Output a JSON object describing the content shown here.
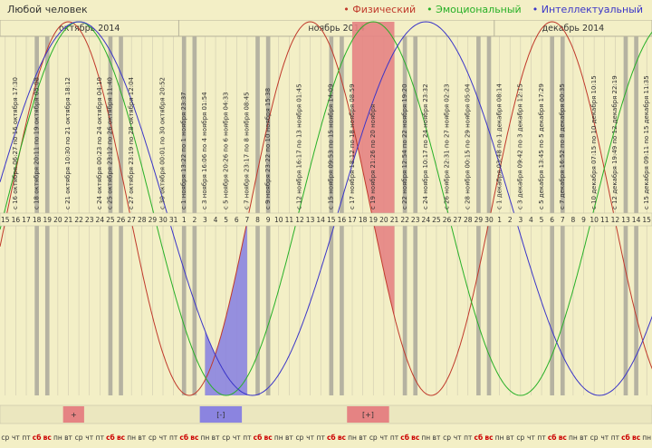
{
  "subject": "Любой человек",
  "legend": {
    "physical": "Физический",
    "emotional": "Эмоциональный",
    "intellectual": "Интеллектуальный"
  },
  "colors": {
    "physical": "#c0392b",
    "emotional": "#27b027",
    "intellectual": "#3a35c8",
    "background": "#f3efc6",
    "weekend": "#a9a79a"
  },
  "chart_data": {
    "type": "line",
    "months": [
      {
        "label": "октябрь 2014",
        "first_day": "2014-10-15",
        "last_day": "2014-10-31"
      },
      {
        "label": "ноябрь 2014",
        "first_day": "2014-11-01",
        "last_day": "2014-11-30"
      },
      {
        "label": "декабрь 2014",
        "first_day": "2014-12-01",
        "last_day": "2014-12-15"
      }
    ],
    "x_range": [
      "2014-10-15",
      "2014-12-15"
    ],
    "day_numbers": [
      15,
      16,
      17,
      18,
      19,
      20,
      21,
      22,
      23,
      24,
      25,
      26,
      27,
      28,
      29,
      30,
      31,
      1,
      2,
      3,
      4,
      5,
      6,
      7,
      8,
      9,
      10,
      11,
      12,
      13,
      14,
      15,
      16,
      17,
      18,
      19,
      20,
      21,
      22,
      23,
      24,
      25,
      26,
      27,
      28,
      29,
      30,
      1,
      2,
      3,
      4,
      5,
      6,
      7,
      8,
      9,
      10,
      11,
      12,
      13,
      14,
      15
    ],
    "weekdays": [
      "ср",
      "чт",
      "пт",
      "сб",
      "вс",
      "пн",
      "вт",
      "ср",
      "чт",
      "пт",
      "сб",
      "вс",
      "пн",
      "вт",
      "ср",
      "чт",
      "пт",
      "сб",
      "вс",
      "пн",
      "вт",
      "ср",
      "чт",
      "пт",
      "сб",
      "вс",
      "пн",
      "вт",
      "ср",
      "чт",
      "пт",
      "сб",
      "вс",
      "пн",
      "вт",
      "ср",
      "чт",
      "пт",
      "сб",
      "вс",
      "пн",
      "вт",
      "ср",
      "чт",
      "пт",
      "сб",
      "вс",
      "пн",
      "вт",
      "ср",
      "чт",
      "пт",
      "сб",
      "вс",
      "пн",
      "вт",
      "ср",
      "чт",
      "пт",
      "сб",
      "вс",
      "пн"
    ],
    "weekend_labels": [
      "сб",
      "вс"
    ],
    "series": [
      {
        "name": "Физический",
        "key": "physical",
        "period_days": 23,
        "peaks": [
          "2014-10-21",
          "2014-11-13",
          "2014-12-06"
        ]
      },
      {
        "name": "Эмоциональный",
        "key": "emotional",
        "period_days": 28,
        "peaks": [
          "2014-10-22",
          "2014-11-19",
          "2014-12-17"
        ]
      },
      {
        "name": "Интеллектуальный",
        "key": "intellectual",
        "period_days": 33,
        "peaks": [
          "2014-10-22",
          "2014-11-24"
        ]
      }
    ],
    "crossings": [
      "с 16 октября 06:27 по 16 октября 17:30",
      "с 18 октября 20:11 по 19 октября 05:08",
      "с 21 октября 10:30 по 21 октября 18:12",
      "с 24 октября 00:23 по 24 октября 04:10",
      "с 25 октября 23:12 по 26 октября 11:40",
      "с 27 октября 23:19 по 28 октября 12:04",
      "с 30 октября 00:01 по 30 октября 20:52",
      "с 1 ноября 13:22 по 1 ноября 23:37",
      "с 3 ноября 16:06 по 4 ноября 01:54",
      "с 5 ноября 20:26 по 6 ноября 04:33",
      "с 7 ноября 23:17 по 8 ноября 08:45",
      "с 9 ноября 23:22 по 10 ноября 15:38",
      "с 12 ноября 16:17 по 13 ноября 01:45",
      "с 15 ноября 09:53 по 15 ноября 14:09",
      "с 17 ноября 18:12 по 18 ноября 08:59",
      "с 19 ноября 21:26 по 20 ноября",
      "с 22 ноября 12:54 по 22 ноября 19:20",
      "с 24 ноября 10:17 по 24 ноября 23:32",
      "с 26 ноября 22:31 по 27 ноября 02:23",
      "с 28 ноября 00:15 по 29 ноября 05:04",
      "с 1 декабря 03:48 по 1 декабря 08:14",
      "с 3 декабря 09:42 по 3 декабря 12:15",
      "с 5 декабря 13:45 по 5 декабря 17:29",
      "с 7 декабря 16:52 по 8 декабря 00:35",
      "с 10 декабря 07:15 по 10 декабря 10:15",
      "с 12 декабря 19:49 по 12 декабря 22:19",
      "с 15 декабря 09:11 по 15 декабря 11:35"
    ],
    "markers": [
      {
        "label": "+",
        "kind": "plus",
        "from": "2014-10-21",
        "to": "2014-10-22"
      },
      {
        "label": "[-]",
        "kind": "minus",
        "from": "2014-11-03",
        "to": "2014-11-06"
      },
      {
        "label": "[+]",
        "kind": "plus",
        "from": "2014-11-17",
        "to": "2014-11-20"
      }
    ],
    "filled_regions": [
      {
        "kind": "plus",
        "from": "2014-11-17",
        "to": "2014-11-20"
      },
      {
        "kind": "minus",
        "from": "2014-11-03",
        "to": "2014-11-06"
      }
    ],
    "y_range": [
      -1,
      1
    ]
  }
}
